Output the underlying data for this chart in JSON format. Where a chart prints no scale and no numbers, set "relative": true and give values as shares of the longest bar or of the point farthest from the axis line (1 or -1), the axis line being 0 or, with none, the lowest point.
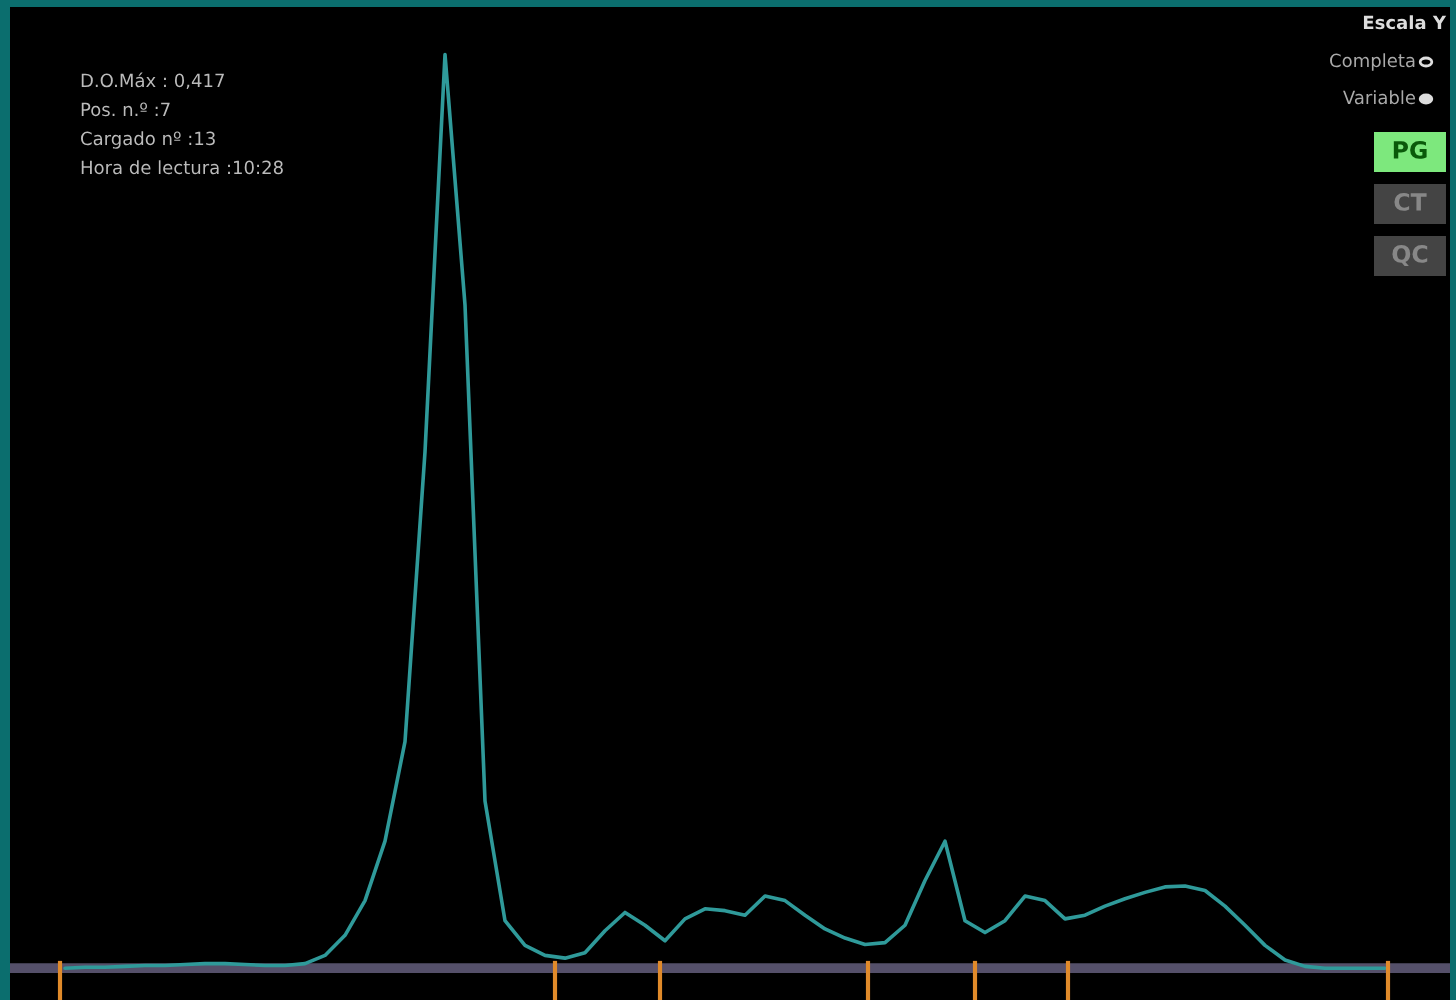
{
  "chart_data": {
    "type": "line",
    "relative": true,
    "marker": "none",
    "line_style": "solid",
    "categories": [
      null,
      null,
      null,
      null,
      null,
      null,
      null,
      null,
      null,
      null,
      null,
      null,
      null,
      null,
      null,
      null,
      null,
      null,
      null,
      null,
      null,
      null,
      null,
      null,
      null,
      null,
      null,
      null,
      null,
      null,
      null,
      null,
      null,
      null,
      null,
      null,
      null,
      null,
      null,
      null,
      null,
      null,
      null,
      null,
      null,
      null,
      null,
      null,
      null,
      null,
      null,
      null,
      null,
      null,
      null,
      null,
      null,
      null,
      null,
      null,
      null,
      null,
      null,
      null,
      null,
      null,
      null
    ],
    "series": [
      {
        "color": "#2f9a9a",
        "values": [
          0,
          0.001,
          0.001,
          0.002,
          0.003,
          0.003,
          0.004,
          0.005,
          0.005,
          0.004,
          0.003,
          0.003,
          0.005,
          0.014,
          0.036,
          0.074,
          0.139,
          0.248,
          0.565,
          1,
          0.726,
          0.183,
          0.052,
          0.025,
          0.014,
          0.011,
          0.017,
          0.041,
          0.061,
          0.047,
          0.03,
          0.054,
          0.065,
          0.063,
          0.058,
          0.079,
          0.074,
          0.058,
          0.043,
          0.033,
          0.026,
          0.028,
          0.047,
          0.096,
          0.139,
          0.052,
          0.039,
          0.052,
          0.079,
          0.074,
          0.054,
          0.058,
          0.068,
          0.076,
          0.083,
          0.089,
          0.09,
          0.085,
          0.068,
          0.047,
          0.025,
          0.009,
          0.002,
          0,
          0,
          0,
          0
        ]
      }
    ],
    "annotations": [
      "D.O.Máx : 0,417",
      "Pos. n.º :7",
      "Cargado nº :13",
      "Hora de lectura :10:28",
      "Escala Y",
      "Completa",
      "Variable",
      "PG",
      "CT",
      "QC"
    ]
  }
}
